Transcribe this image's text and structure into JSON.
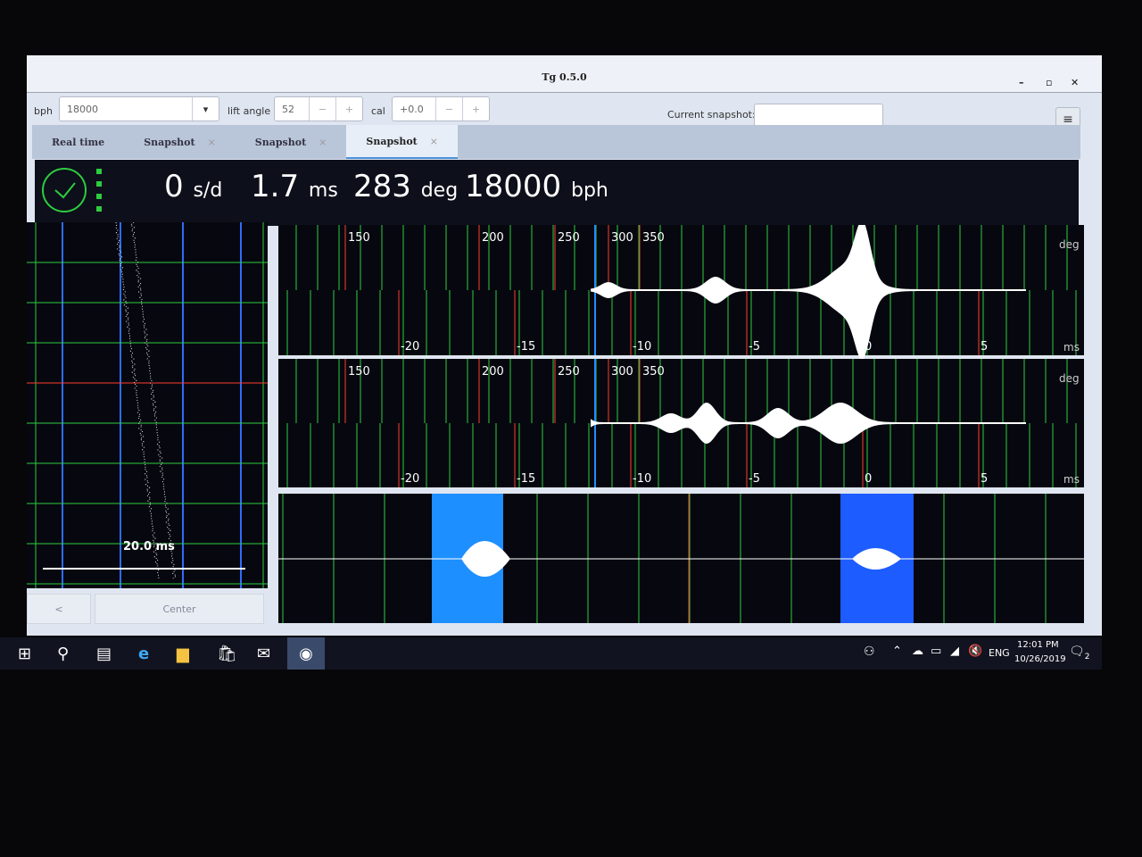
{
  "window": {
    "title": "Tg 0.5.0",
    "minimize": "–",
    "maximize": "▫",
    "close": "✕"
  },
  "toolbar": {
    "bph_label": "bph",
    "bph_value": "18000",
    "lift_label": "lift angle",
    "lift_value": "52",
    "cal_label": "cal",
    "cal_value": "+0.0",
    "minus": "−",
    "plus": "+",
    "snapshot_label": "Current snapshot:",
    "snapshot_value": "",
    "menu": "≡"
  },
  "tabs": [
    {
      "label": "Real time"
    },
    {
      "label": "Snapshot",
      "close": "×"
    },
    {
      "label": "Snapshot",
      "close": "×"
    },
    {
      "label": "Snapshot",
      "close": "×",
      "active": true
    }
  ],
  "status": {
    "rate": "0",
    "rate_unit": "s/d",
    "beat_error": "1.7",
    "beat_unit": "ms",
    "amplitude": "283",
    "amp_unit": "deg",
    "bph": "18000",
    "bph_unit": "bph"
  },
  "paperstrip": {
    "scale_label": "20.0 ms",
    "back_button": "<",
    "center_button": "Center"
  },
  "plots": {
    "deg_ticks": [
      "150",
      "200",
      "250",
      "300",
      "350"
    ],
    "ms_ticks": [
      "-20",
      "-15",
      "-10",
      "-5",
      "0",
      "5"
    ],
    "deg_unit": "deg",
    "ms_unit": "ms"
  },
  "taskbar": {
    "time": "12:01 PM",
    "date": "10/26/2019",
    "lang": "ENG",
    "notifications": "2"
  },
  "colors": {
    "green": "#2ecc40",
    "red": "#ff3b2f",
    "blue": "#2f6bff",
    "highlight": "#1e8fff"
  }
}
